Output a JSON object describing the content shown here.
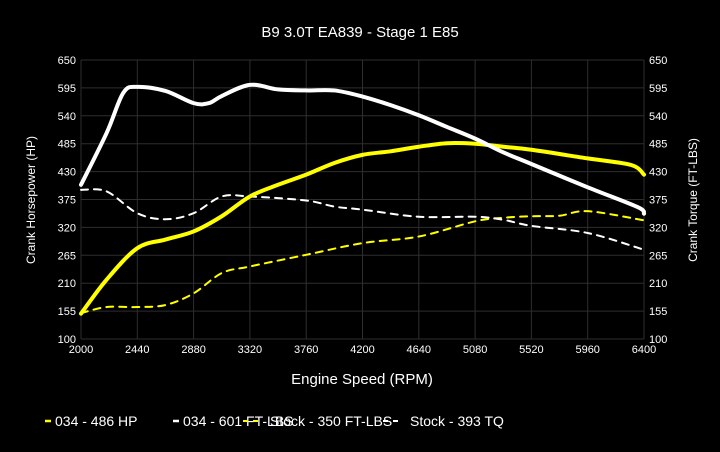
{
  "chart_data": {
    "type": "line",
    "title": "B9 3.0T EA839 - Stage 1 E85",
    "xlabel": "Engine Speed (RPM)",
    "ylabel_left": "Crank Horsepower (HP)",
    "ylabel_right": "Crank Torque (FT-LBS)",
    "xlim": [
      2000,
      6400
    ],
    "ylim": [
      100,
      650
    ],
    "x_ticks": [
      2000,
      2440,
      2880,
      3320,
      3760,
      4200,
      4640,
      5080,
      5520,
      5960,
      6400
    ],
    "y_ticks": [
      100,
      155,
      210,
      265,
      320,
      375,
      430,
      485,
      540,
      595,
      650
    ],
    "grid": true,
    "legend_position": "bottom",
    "background": "#000000",
    "series": [
      {
        "name": "034 - 486 HP",
        "color": "#ffff00",
        "style": "solid",
        "x": [
          2000,
          2200,
          2440,
          2660,
          2880,
          3100,
          3320,
          3540,
          3760,
          3980,
          4200,
          4420,
          4640,
          4860,
          5080,
          5300,
          5520,
          5960,
          6300,
          6400
        ],
        "y": [
          150,
          217,
          279,
          296,
          312,
          342,
          381,
          404,
          424,
          447,
          463,
          470,
          479,
          486,
          485,
          479,
          473,
          456,
          443,
          424
        ]
      },
      {
        "name": "034 - 601 FT-LBS",
        "color": "#ffffff",
        "style": "solid",
        "x": [
          2000,
          2200,
          2330,
          2440,
          2660,
          2880,
          3000,
          3100,
          3320,
          3540,
          3760,
          3980,
          4200,
          4420,
          4640,
          4860,
          5080,
          5300,
          5520,
          5960,
          6350,
          6400
        ],
        "y": [
          404,
          506,
          585,
          597,
          589,
          565,
          565,
          579,
          601,
          592,
          590,
          590,
          578,
          561,
          541,
          518,
          495,
          468,
          445,
          399,
          360,
          347
        ]
      },
      {
        "name": "Stock - 350 FT-LBS",
        "color": "#ffff00",
        "style": "dashed",
        "x": [
          2000,
          2200,
          2440,
          2660,
          2880,
          3100,
          3320,
          3760,
          4200,
          4640,
          5080,
          5300,
          5520,
          5740,
          5960,
          6400
        ],
        "y": [
          151,
          163,
          163,
          167,
          190,
          230,
          243,
          266,
          289,
          302,
          332,
          339,
          342,
          343,
          352,
          334
        ]
      },
      {
        "name": "Stock - 393 TQ",
        "color": "#ffffff",
        "style": "dashed",
        "x": [
          2000,
          2200,
          2440,
          2660,
          2880,
          3100,
          3320,
          3760,
          3980,
          4200,
          4640,
          5080,
          5300,
          5520,
          5960,
          6400
        ],
        "y": [
          394,
          391,
          348,
          336,
          348,
          381,
          381,
          373,
          361,
          355,
          341,
          341,
          335,
          323,
          309,
          276
        ]
      }
    ]
  }
}
